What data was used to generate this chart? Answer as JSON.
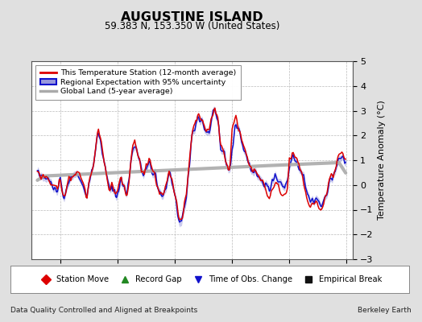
{
  "title": "AUGUSTINE ISLAND",
  "subtitle": "59.383 N, 153.350 W (United States)",
  "ylabel": "Temperature Anomaly (°C)",
  "xlabel_left": "Data Quality Controlled and Aligned at Breakpoints",
  "xlabel_right": "Berkeley Earth",
  "ylim": [
    -3,
    5
  ],
  "xlim": [
    1987.5,
    2015.5
  ],
  "xticks": [
    1990,
    1995,
    2000,
    2005,
    2010,
    2015
  ],
  "yticks": [
    -3,
    -2,
    -1,
    0,
    1,
    2,
    3,
    4,
    5
  ],
  "bg_color": "#e0e0e0",
  "plot_bg_color": "#ffffff",
  "grid_color": "#bbbbbb",
  "red_line_color": "#dd0000",
  "blue_line_color": "#1111cc",
  "blue_fill_color": "#9999dd",
  "gray_line_color": "#aaaaaa",
  "legend1_labels": [
    "This Temperature Station (12-month average)",
    "Regional Expectation with 95% uncertainty",
    "Global Land (5-year average)"
  ],
  "legend2_labels": [
    "Station Move",
    "Record Gap",
    "Time of Obs. Change",
    "Empirical Break"
  ],
  "legend2_colors": [
    "#dd0000",
    "#228822",
    "#1111cc",
    "#111111"
  ],
  "legend2_markers": [
    "D",
    "^",
    "v",
    "s"
  ]
}
